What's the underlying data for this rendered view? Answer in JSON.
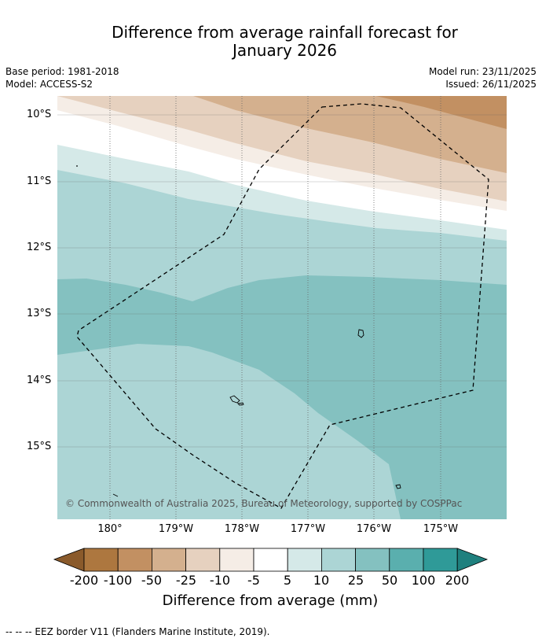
{
  "title_line1": "Difference from average rainfall forecast for",
  "title_line2": "January 2026",
  "base_period": "Base period: 1981-2018",
  "model": "Model: ACCESS-S2",
  "model_run": "Model run: 23/11/2025",
  "issued": "Issued: 26/11/2025",
  "latitude_labels": [
    "10°S",
    "11°S",
    "12°S",
    "13°S",
    "14°S",
    "15°S"
  ],
  "longitude_labels": [
    "180°",
    "179°W",
    "178°W",
    "177°W",
    "176°W",
    "175°W"
  ],
  "copyright": "© Commonwealth of Australia 2025, Bureau of Meteorology, supported by COSPPac",
  "colorbar": {
    "labels": [
      "-200",
      "-100",
      "-50",
      "-25",
      "-10",
      "-5",
      "5",
      "10",
      "25",
      "50",
      "100",
      "200"
    ],
    "colors": [
      "#8a5a2b",
      "#ad773f",
      "#c29062",
      "#d4b08e",
      "#e6d1bf",
      "#f5ede6",
      "#ffffff",
      "#d5e9e8",
      "#acd5d5",
      "#84c1c0",
      "#5aafae",
      "#2f9a98",
      "#1f807e"
    ],
    "title": "Difference from average (mm)"
  },
  "footnote": "-- -- -- EEZ border V11 (Flanders Marine Institute, 2019)."
}
